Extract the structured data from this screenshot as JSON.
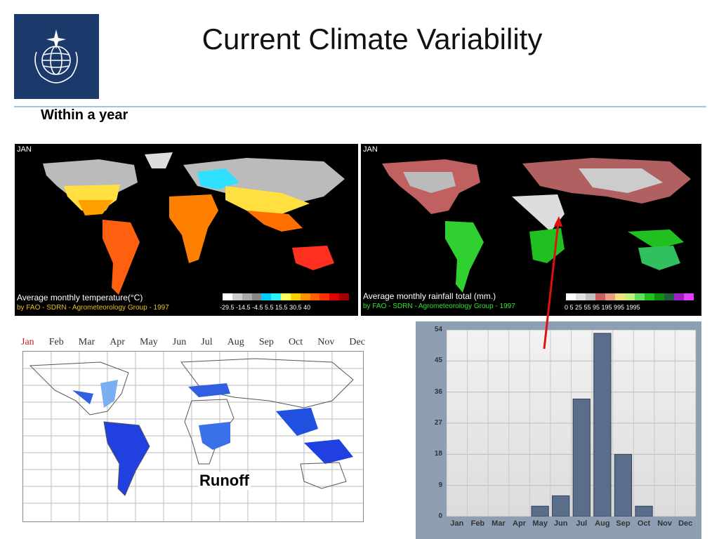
{
  "slide": {
    "title": "Current Climate Variability",
    "subtitle": "Within a year",
    "runoff_label": "Runoff"
  },
  "logo": {
    "name": "wmo-emblem-icon",
    "background": "#1b3a6b"
  },
  "temperature_map": {
    "month_tag": "JAN",
    "caption": "Average monthly temperature(°C)",
    "credit": "by FAO - SDRN - Agrometeorology Group - 1997",
    "credit_color": "#e8c020",
    "legend_colors": [
      "#ffffff",
      "#cccccc",
      "#aaaaaa",
      "#888888",
      "#00d0ff",
      "#30f0ff",
      "#ffff60",
      "#ffd000",
      "#ff9000",
      "#ff6000",
      "#ff3000",
      "#e00000",
      "#a00000"
    ],
    "legend_ticks": "-29.5 -14.5 -4.5  5.5  15.5  30.5  40"
  },
  "rainfall_map": {
    "month_tag": "JAN",
    "caption": "Average monthly rainfall total (mm.)",
    "credit": "by FAO - SDRN - Agrometeorology Group - 1997",
    "credit_color": "#30e030",
    "legend_colors": [
      "#ffffff",
      "#e0e0e0",
      "#c0c0c0",
      "#c86060",
      "#e8a080",
      "#f0e080",
      "#c0f080",
      "#60e060",
      "#20c020",
      "#109010",
      "#206040",
      "#a020c0",
      "#e040ff"
    ],
    "legend_ticks": "0  5   25   55   95  195  995  1995"
  },
  "runoff_map": {
    "months": [
      "Jan",
      "Feb",
      "Mar",
      "Apr",
      "May",
      "Jun",
      "Jul",
      "Aug",
      "Sep",
      "Oct",
      "Nov",
      "Dec"
    ],
    "active_month": "Jan"
  },
  "chart_data": {
    "type": "bar",
    "categories": [
      "Jan",
      "Feb",
      "Mar",
      "Apr",
      "May",
      "Jun",
      "Jul",
      "Aug",
      "Sep",
      "Oct",
      "Nov",
      "Dec"
    ],
    "values": [
      0,
      0,
      0,
      0,
      3,
      6,
      34,
      53,
      18,
      3,
      0,
      0
    ],
    "title": "",
    "xlabel": "",
    "ylabel": "",
    "ylim": [
      0,
      54
    ],
    "yticks": [
      0,
      9,
      18,
      27,
      36,
      45,
      54
    ],
    "grid": true,
    "bar_color": "#5a6e8c"
  },
  "arrow_color": "#e01010"
}
